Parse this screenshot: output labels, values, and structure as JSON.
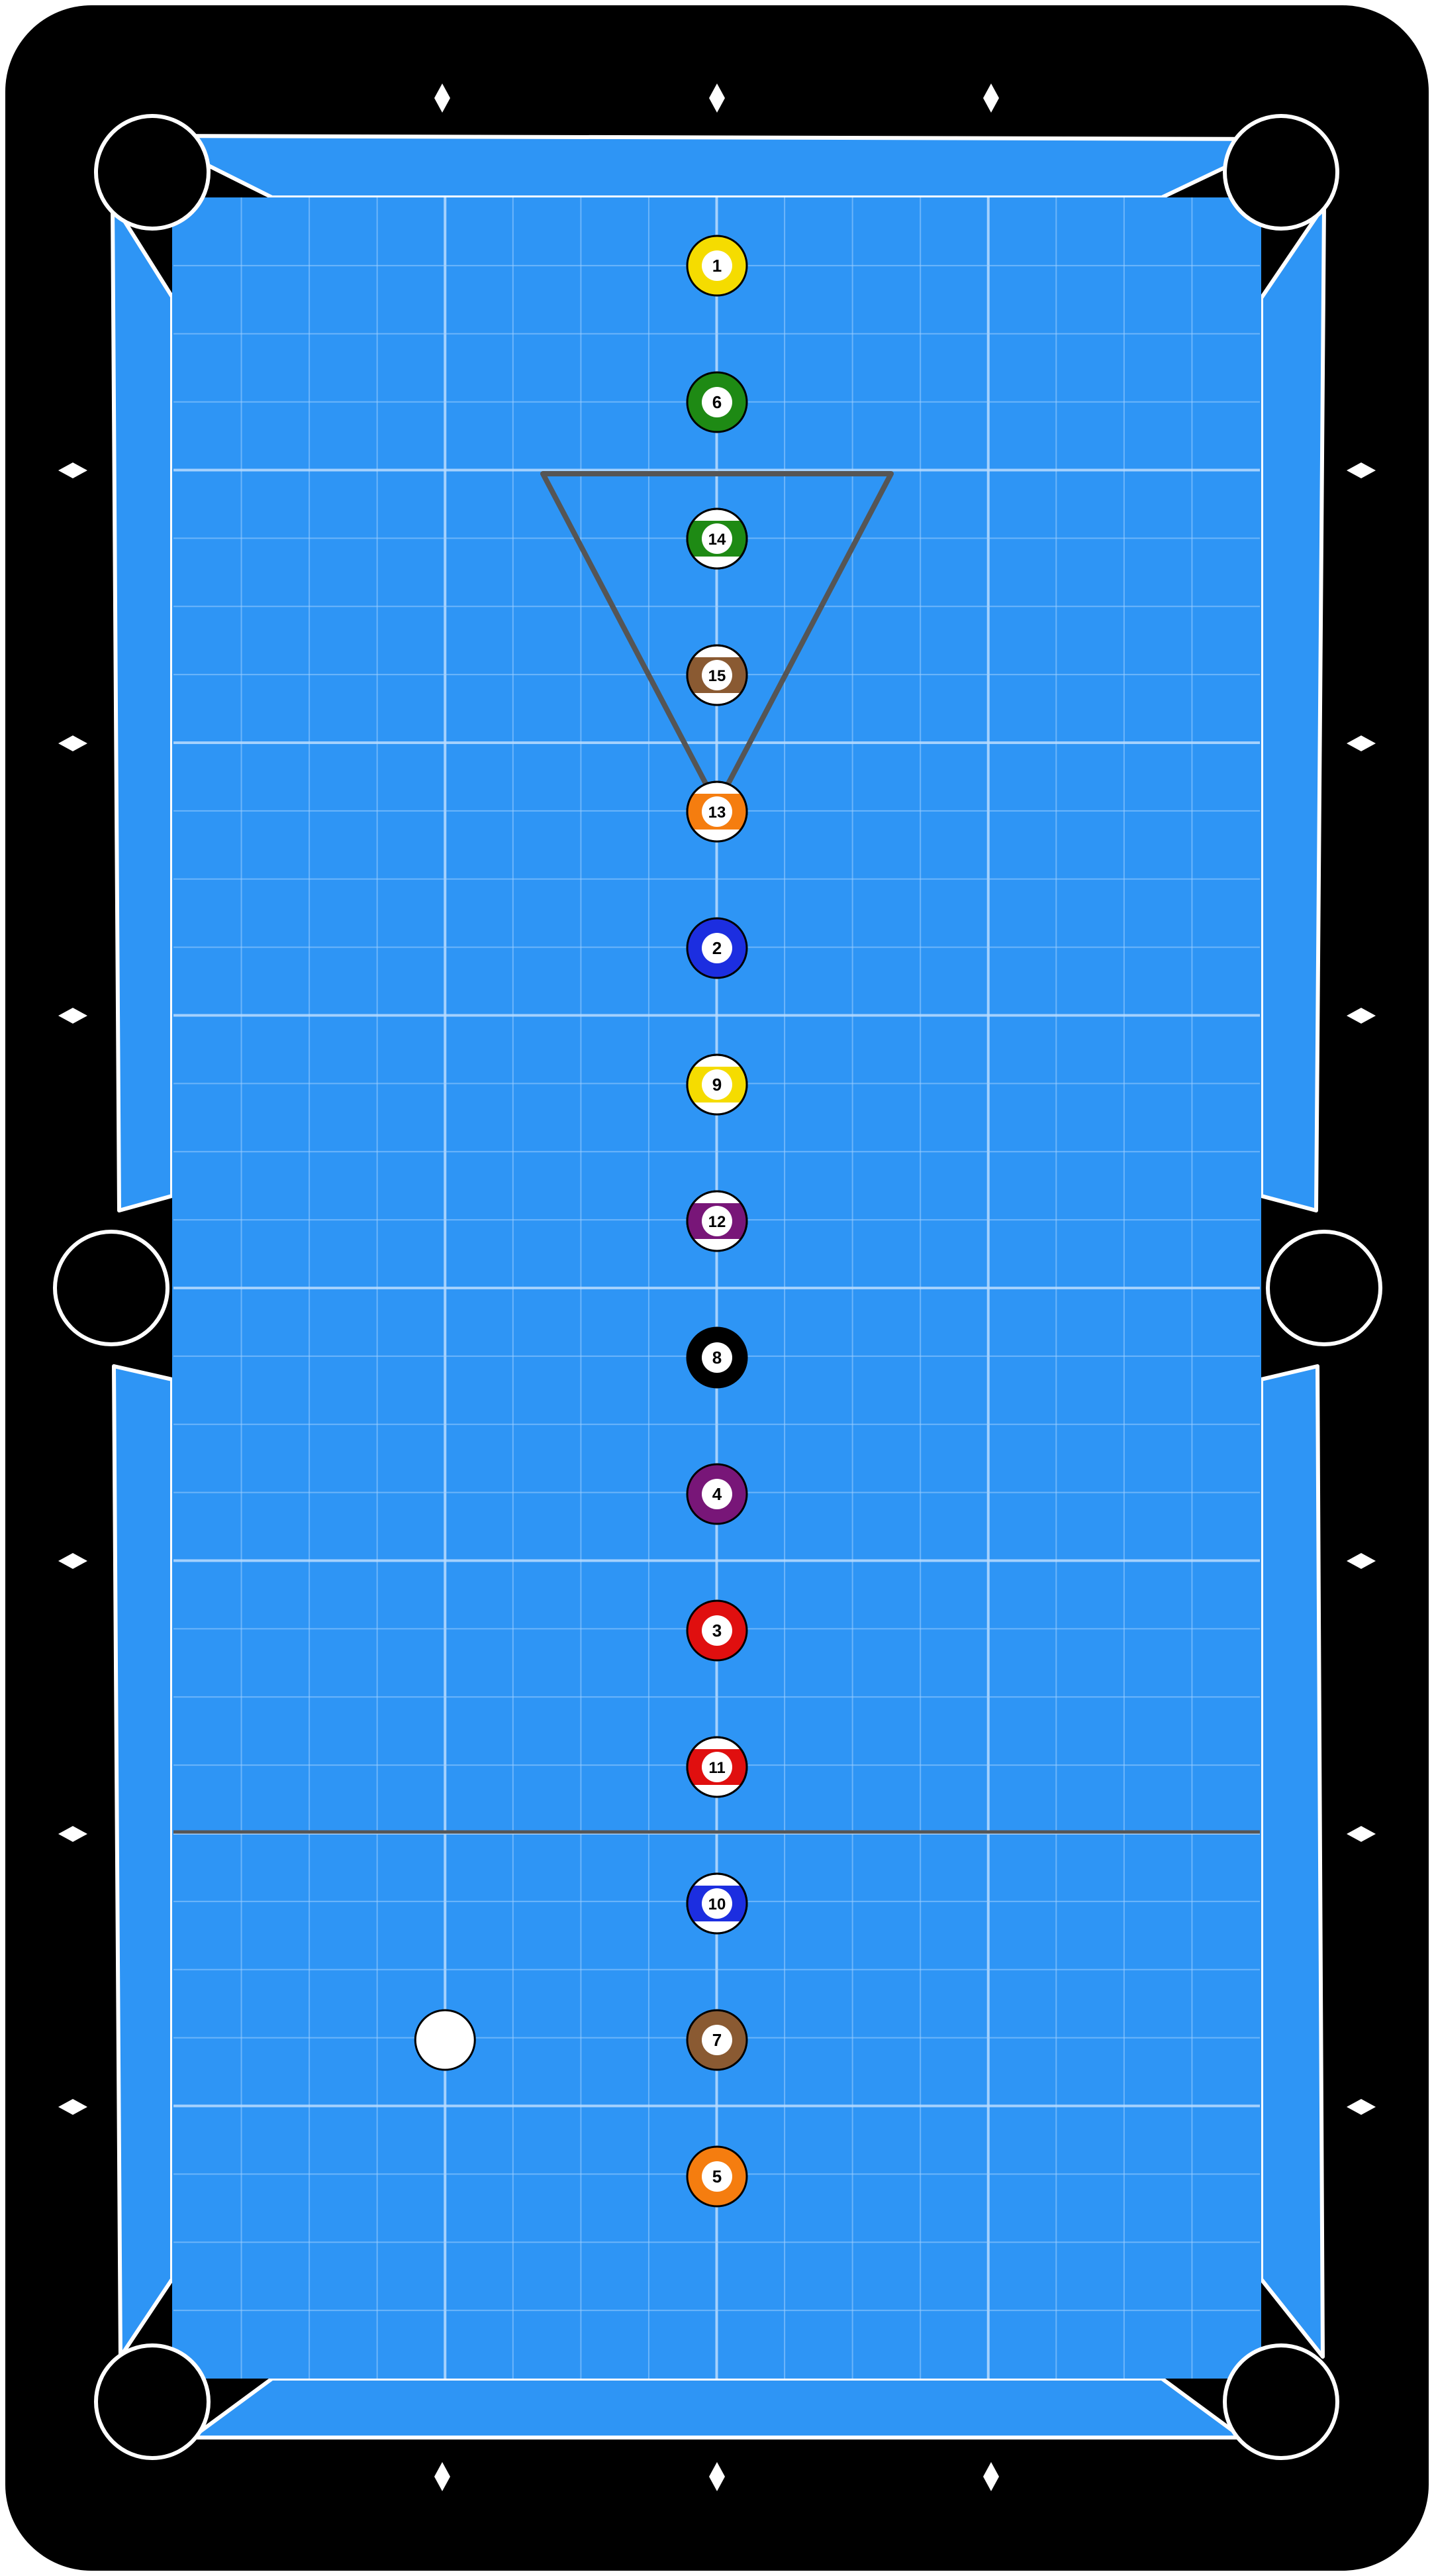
{
  "table": {
    "frame_color": "#000000",
    "cloth_color": "#2e95f5",
    "cushion_color": "#2e95f5",
    "line_color": "#ffffff",
    "grid_color": "#9fd0ff",
    "rack_color": "#555555",
    "head_string_color": "#555555",
    "diamond_color": "#ffffff"
  },
  "balls": [
    {
      "number": "1",
      "color": "#f5dc00",
      "stripe": false,
      "row": 1
    },
    {
      "number": "6",
      "color": "#1e8a14",
      "stripe": false,
      "row": 2
    },
    {
      "number": "14",
      "color": "#1e8a14",
      "stripe": true,
      "row": 3
    },
    {
      "number": "15",
      "color": "#8a5a32",
      "stripe": true,
      "row": 4
    },
    {
      "number": "13",
      "color": "#f57d0f",
      "stripe": true,
      "row": 5
    },
    {
      "number": "2",
      "color": "#1c2ee0",
      "stripe": false,
      "row": 6
    },
    {
      "number": "9",
      "color": "#f5dc00",
      "stripe": true,
      "row": 7
    },
    {
      "number": "12",
      "color": "#781678",
      "stripe": true,
      "row": 8
    },
    {
      "number": "8",
      "color": "#000000",
      "stripe": false,
      "row": 9
    },
    {
      "number": "4",
      "color": "#781678",
      "stripe": false,
      "row": 10
    },
    {
      "number": "3",
      "color": "#e00f0f",
      "stripe": false,
      "row": 11
    },
    {
      "number": "11",
      "color": "#e00f0f",
      "stripe": true,
      "row": 12
    },
    {
      "number": "10",
      "color": "#1c2ee0",
      "stripe": true,
      "row": 13
    },
    {
      "number": "7",
      "color": "#8a5a32",
      "stripe": false,
      "row": 14
    },
    {
      "number": "5",
      "color": "#f57d0f",
      "stripe": false,
      "row": 15
    }
  ],
  "cue_ball": {
    "color": "#ffffff",
    "row": 14,
    "column": 2
  }
}
